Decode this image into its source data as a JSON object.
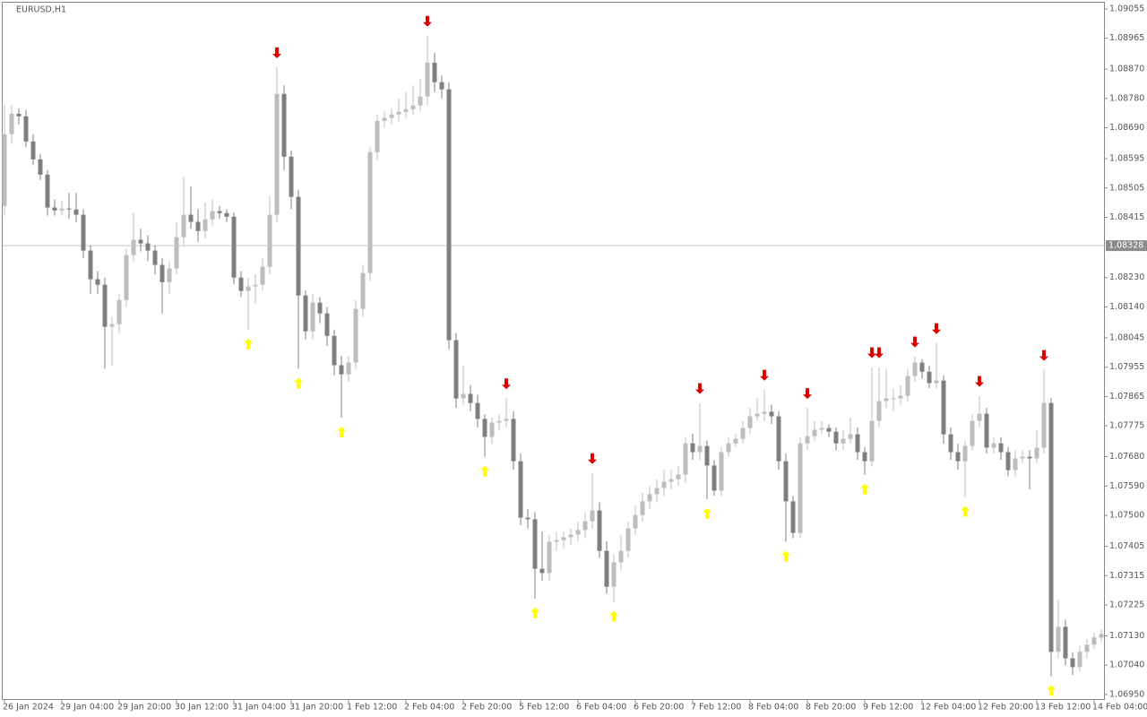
{
  "chart_data": {
    "type": "candlestick",
    "title": "EURUSD,H1",
    "ylim": [
      1.06936,
      1.09074
    ],
    "yticks": [
      1.09055,
      1.08965,
      {
        "value": 1.0887,
        "label": "1.08870"
      },
      {
        "value": 1.0878,
        "label": "1.08780"
      },
      {
        "value": 1.0869,
        "label": "1.08690"
      },
      1.08595,
      1.08505,
      1.08415,
      {
        "value": 1.0823,
        "label": "1.08230"
      },
      {
        "value": 1.0814,
        "label": "1.08140"
      },
      1.08045,
      1.07955,
      1.07865,
      1.07775,
      {
        "value": 1.0768,
        "label": "1.07680"
      },
      {
        "value": 1.0759,
        "label": "1.07590"
      },
      {
        "value": 1.075,
        "label": "1.07500"
      },
      1.07405,
      1.07315,
      1.07225,
      {
        "value": 1.0713,
        "label": "1.07130"
      },
      {
        "value": 1.0704,
        "label": "1.07040"
      },
      {
        "value": 1.0695,
        "label": "1.06950"
      }
    ],
    "xticks": [
      {
        "value": 0,
        "label": "26 Jan 2024"
      },
      {
        "value": 8,
        "label": "29 Jan 04:00"
      },
      {
        "value": 16,
        "label": "29 Jan 20:00"
      },
      {
        "value": 24,
        "label": "30 Jan 12:00"
      },
      {
        "value": 32,
        "label": "31 Jan 04:00"
      },
      {
        "value": 40,
        "label": "31 Jan 20:00"
      },
      {
        "value": 48,
        "label": "1 Feb 12:00"
      },
      {
        "value": 56,
        "label": "2 Feb 04:00"
      },
      {
        "value": 64,
        "label": "2 Feb 20:00"
      },
      {
        "value": 72,
        "label": "5 Feb 12:00"
      },
      {
        "value": 80,
        "label": "6 Feb 04:00"
      },
      {
        "value": 88,
        "label": "6 Feb 20:00"
      },
      {
        "value": 96,
        "label": "7 Feb 12:00"
      },
      {
        "value": 104,
        "label": "8 Feb 04:00"
      },
      {
        "value": 112,
        "label": "8 Feb 20:00"
      },
      {
        "value": 120,
        "label": "9 Feb 12:00"
      },
      {
        "value": 128,
        "label": "12 Feb 04:00"
      },
      {
        "value": 136,
        "label": "12 Feb 20:00"
      },
      {
        "value": 144,
        "label": "13 Feb 12:00"
      },
      {
        "value": 152,
        "label": "14 Feb 04:00"
      }
    ],
    "current_price": 1.08328,
    "up_color": "#bdbdbd",
    "down_color": "#7f7f7f",
    "buy_color": "#ffff00",
    "sell_color": "#e00000",
    "candles": [
      [
        1.0845,
        1.0876,
        1.0842,
        1.0867
      ],
      [
        1.0867,
        1.0876,
        1.0864,
        1.08733
      ],
      [
        1.08733,
        1.0875,
        1.087,
        1.08725
      ],
      [
        1.08725,
        1.08745,
        1.0863,
        1.08648
      ],
      [
        1.08648,
        1.0867,
        1.08575,
        1.08593
      ],
      [
        1.08593,
        1.0861,
        1.0853,
        1.08546
      ],
      [
        1.08546,
        1.0856,
        1.0842,
        1.08445
      ],
      [
        1.08445,
        1.0847,
        1.0842,
        1.08436
      ],
      [
        1.08436,
        1.08465,
        1.0842,
        1.08442
      ],
      [
        1.08442,
        1.0849,
        1.0841,
        1.08439
      ],
      [
        1.08439,
        1.0849,
        1.084,
        1.08423
      ],
      [
        1.08423,
        1.0844,
        1.0829,
        1.08313
      ],
      [
        1.08313,
        1.0833,
        1.0818,
        1.08225
      ],
      [
        1.08225,
        1.0825,
        1.0818,
        1.08208
      ],
      [
        1.08208,
        1.0823,
        1.0795,
        1.08079
      ],
      [
        1.08079,
        1.0811,
        1.0796,
        1.08087
      ],
      [
        1.08087,
        1.0818,
        1.0806,
        1.08161
      ],
      [
        1.08161,
        1.0832,
        1.0814,
        1.08299
      ],
      [
        1.08299,
        1.0843,
        1.0828,
        1.08346
      ],
      [
        1.08346,
        1.0838,
        1.0831,
        1.08335
      ],
      [
        1.08335,
        1.0836,
        1.0828,
        1.08313
      ],
      [
        1.08313,
        1.0833,
        1.0824,
        1.08269
      ],
      [
        1.08269,
        1.0829,
        1.0812,
        1.08216
      ],
      [
        1.08216,
        1.0828,
        1.0818,
        1.08258
      ],
      [
        1.08258,
        1.084,
        1.0824,
        1.08354
      ],
      [
        1.08354,
        1.0854,
        1.0833,
        1.08423
      ],
      [
        1.08423,
        1.0851,
        1.0838,
        1.08401
      ],
      [
        1.08401,
        1.0844,
        1.0834,
        1.08373
      ],
      [
        1.08373,
        1.0846,
        1.0835,
        1.08409
      ],
      [
        1.08409,
        1.0847,
        1.0839,
        1.08434
      ],
      [
        1.08434,
        1.0845,
        1.0841,
        1.08428
      ],
      [
        1.08428,
        1.0844,
        1.084,
        1.08417
      ],
      [
        1.08417,
        1.0843,
        1.0821,
        1.0823
      ],
      [
        1.0823,
        1.0825,
        1.0817,
        1.08189
      ],
      [
        1.08189,
        1.0823,
        1.0807,
        1.08203
      ],
      [
        1.08203,
        1.0824,
        1.0815,
        1.08208
      ],
      [
        1.08208,
        1.0829,
        1.0819,
        1.08263
      ],
      [
        1.08263,
        1.0848,
        1.0824,
        1.08423
      ],
      [
        1.08423,
        1.08876,
        1.084,
        1.08794
      ],
      [
        1.08794,
        1.0882,
        1.0856,
        1.08601
      ],
      [
        1.08601,
        1.0862,
        1.0844,
        1.08478
      ],
      [
        1.08478,
        1.085,
        1.0795,
        1.08175
      ],
      [
        1.08175,
        1.0819,
        1.0804,
        1.08065
      ],
      [
        1.08065,
        1.0818,
        1.0804,
        1.08153
      ],
      [
        1.08153,
        1.0817,
        1.0809,
        1.0812
      ],
      [
        1.0812,
        1.0814,
        1.0802,
        1.08051
      ],
      [
        1.08051,
        1.0807,
        1.0793,
        1.07961
      ],
      [
        1.07961,
        1.0799,
        1.078,
        1.07933
      ],
      [
        1.07933,
        1.0799,
        1.0791,
        1.07969
      ],
      [
        1.07969,
        1.0816,
        1.0795,
        1.08134
      ],
      [
        1.08134,
        1.0827,
        1.0811,
        1.08244
      ],
      [
        1.08244,
        1.0863,
        1.0822,
        1.08615
      ],
      [
        1.08615,
        1.0873,
        1.0859,
        1.08711
      ],
      [
        1.08711,
        1.0874,
        1.0869,
        1.0872
      ],
      [
        1.0872,
        1.0875,
        1.087,
        1.08731
      ],
      [
        1.08731,
        1.0878,
        1.0871,
        1.08739
      ],
      [
        1.08739,
        1.088,
        1.0872,
        1.08747
      ],
      [
        1.08747,
        1.0882,
        1.0873,
        1.08758
      ],
      [
        1.08758,
        1.0884,
        1.0874,
        1.08786
      ],
      [
        1.08786,
        1.08973,
        1.0876,
        1.0889
      ],
      [
        1.0889,
        1.0892,
        1.088,
        1.0883
      ],
      [
        1.0883,
        1.0885,
        1.0878,
        1.08808
      ],
      [
        1.08808,
        1.0883,
        1.0801,
        1.08038
      ],
      [
        1.08038,
        1.0806,
        1.0783,
        1.07859
      ],
      [
        1.07859,
        1.0796,
        1.0784,
        1.07873
      ],
      [
        1.07873,
        1.079,
        1.0782,
        1.07845
      ],
      [
        1.07845,
        1.0787,
        1.0777,
        1.07796
      ],
      [
        1.07796,
        1.0781,
        1.0768,
        1.07741
      ],
      [
        1.07741,
        1.078,
        1.0772,
        1.07785
      ],
      [
        1.07785,
        1.0781,
        1.0776,
        1.0779
      ],
      [
        1.0779,
        1.0786,
        1.0777,
        1.07796
      ],
      [
        1.07796,
        1.0782,
        1.0764,
        1.07666
      ],
      [
        1.07666,
        1.0769,
        1.0747,
        1.07493
      ],
      [
        1.07493,
        1.0752,
        1.0746,
        1.07488
      ],
      [
        1.07488,
        1.0751,
        1.07245,
        1.07336
      ],
      [
        1.07336,
        1.0745,
        1.073,
        1.07323
      ],
      [
        1.07323,
        1.0744,
        1.073,
        1.07419
      ],
      [
        1.07419,
        1.0745,
        1.0739,
        1.07424
      ],
      [
        1.07424,
        1.0745,
        1.074,
        1.07433
      ],
      [
        1.07433,
        1.0746,
        1.0741,
        1.07441
      ],
      [
        1.07441,
        1.0748,
        1.0742,
        1.07455
      ],
      [
        1.07455,
        1.0751,
        1.0743,
        1.07482
      ],
      [
        1.07482,
        1.0763,
        1.0746,
        1.07515
      ],
      [
        1.07515,
        1.0754,
        1.0737,
        1.07391
      ],
      [
        1.07391,
        1.0742,
        1.0726,
        1.07281
      ],
      [
        1.07281,
        1.0738,
        1.07234,
        1.07356
      ],
      [
        1.07356,
        1.0744,
        1.0733,
        1.07391
      ],
      [
        1.07391,
        1.0748,
        1.0737,
        1.0746
      ],
      [
        1.0746,
        1.0753,
        1.0744,
        1.07501
      ],
      [
        1.07501,
        1.0757,
        1.0748,
        1.07543
      ],
      [
        1.07543,
        1.0759,
        1.0752,
        1.07565
      ],
      [
        1.07565,
        1.0761,
        1.0754,
        1.07584
      ],
      [
        1.07584,
        1.0764,
        1.0756,
        1.07603
      ],
      [
        1.07603,
        1.0764,
        1.0758,
        1.07611
      ],
      [
        1.07611,
        1.0765,
        1.0759,
        1.07625
      ],
      [
        1.07625,
        1.0774,
        1.076,
        1.07721
      ],
      [
        1.07721,
        1.0775,
        1.0767,
        1.07694
      ],
      [
        1.07694,
        1.07845,
        1.0767,
        1.07713
      ],
      [
        1.07713,
        1.0773,
        1.0755,
        1.07653
      ],
      [
        1.07653,
        1.0767,
        1.0756,
        1.07576
      ],
      [
        1.07576,
        1.0771,
        1.0756,
        1.07694
      ],
      [
        1.07694,
        1.0774,
        1.0768,
        1.07721
      ],
      [
        1.07721,
        1.0775,
        1.0771,
        1.07735
      ],
      [
        1.07735,
        1.0779,
        1.0772,
        1.07768
      ],
      [
        1.07768,
        1.0783,
        1.0775,
        1.07804
      ],
      [
        1.07804,
        1.0786,
        1.0779,
        1.07812
      ],
      [
        1.07812,
        1.07886,
        1.0779,
        1.07818
      ],
      [
        1.07818,
        1.0784,
        1.0778,
        1.07804
      ],
      [
        1.07804,
        1.0782,
        1.0764,
        1.07666
      ],
      [
        1.07666,
        1.0769,
        1.07419,
        1.07543
      ],
      [
        1.07543,
        1.0756,
        1.0743,
        1.07446
      ],
      [
        1.07446,
        1.0774,
        1.0743,
        1.07721
      ],
      [
        1.07721,
        1.0783,
        1.077,
        1.07743
      ],
      [
        1.07743,
        1.0779,
        1.0773,
        1.07763
      ],
      [
        1.07763,
        1.0779,
        1.0775,
        1.07768
      ],
      [
        1.07768,
        1.0778,
        1.0774,
        1.07757
      ],
      [
        1.07757,
        1.0777,
        1.077,
        1.07721
      ],
      [
        1.07721,
        1.0776,
        1.077,
        1.07735
      ],
      [
        1.07735,
        1.078,
        1.0772,
        1.07749
      ],
      [
        1.07749,
        1.0777,
        1.0767,
        1.07694
      ],
      [
        1.07694,
        1.0771,
        1.07625,
        1.07666
      ],
      [
        1.07666,
        1.07955,
        1.0765,
        1.0779
      ],
      [
        1.0779,
        1.07955,
        1.0777,
        1.07851
      ],
      [
        1.07851,
        1.0795,
        1.0783,
        1.07859
      ],
      [
        1.07859,
        1.0789,
        1.0782,
        1.07859
      ],
      [
        1.07859,
        1.079,
        1.0784,
        1.07867
      ],
      [
        1.07867,
        1.0795,
        1.0785,
        1.07928
      ],
      [
        1.07928,
        1.07988,
        1.0791,
        1.07969
      ],
      [
        1.07969,
        1.0798,
        1.0792,
        1.07941
      ],
      [
        1.07941,
        1.0796,
        1.0789,
        1.07906
      ],
      [
        1.07906,
        1.08029,
        1.0789,
        1.07914
      ],
      [
        1.07914,
        1.0793,
        1.0772,
        1.07749
      ],
      [
        1.07749,
        1.0777,
        1.0767,
        1.07694
      ],
      [
        1.07694,
        1.0772,
        1.0764,
        1.07666
      ],
      [
        1.07666,
        1.0773,
        1.07556,
        1.07713
      ],
      [
        1.07713,
        1.0781,
        1.077,
        1.0779
      ],
      [
        1.0779,
        1.07867,
        1.0777,
        1.07812
      ],
      [
        1.07812,
        1.0783,
        1.0769,
        1.07708
      ],
      [
        1.07708,
        1.0774,
        1.0769,
        1.07721
      ],
      [
        1.07721,
        1.0774,
        1.0767,
        1.07694
      ],
      [
        1.07694,
        1.0771,
        1.0762,
        1.07639
      ],
      [
        1.07639,
        1.077,
        1.0762,
        1.07675
      ],
      [
        1.07675,
        1.077,
        1.0766,
        1.0768
      ],
      [
        1.0768,
        1.077,
        1.0758,
        1.07675
      ],
      [
        1.07675,
        1.0776,
        1.0766,
        1.07708
      ],
      [
        1.07708,
        1.07947,
        1.0769,
        1.07845
      ],
      [
        1.07845,
        1.0786,
        1.07006,
        1.07081
      ],
      [
        1.07081,
        1.0724,
        1.0706,
        1.07158
      ],
      [
        1.07158,
        1.0718,
        1.0704,
        1.07061
      ],
      [
        1.07061,
        1.0708,
        1.0701,
        1.07034
      ],
      [
        1.07034,
        1.071,
        1.0702,
        1.07081
      ],
      [
        1.07081,
        1.0712,
        1.0706,
        1.07103
      ],
      [
        1.07103,
        1.0714,
        1.0709,
        1.07125
      ],
      [
        1.07125,
        1.0715,
        1.0711,
        1.07136
      ]
    ],
    "buy_signals": [
      34,
      41,
      47,
      67,
      74,
      85,
      98,
      109,
      120,
      134,
      146
    ],
    "sell_signals": [
      38,
      59,
      70,
      82,
      97,
      106,
      112,
      121,
      122,
      127,
      130,
      136,
      145
    ]
  }
}
